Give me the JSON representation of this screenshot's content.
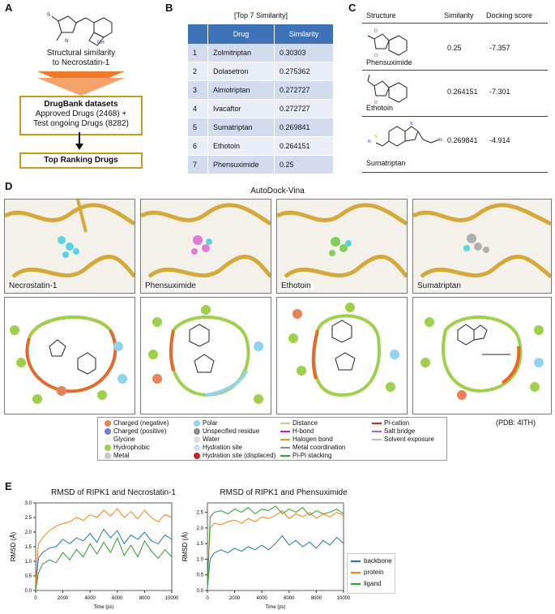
{
  "panels": {
    "a": "A",
    "b": "B",
    "c": "C",
    "d": "D",
    "e": "E"
  },
  "panel_a": {
    "similarity_label": "Structural similarity\nto Necrostatin-1",
    "datasets_title": "DrugBank datasets",
    "datasets_line1": "Approved Drugs  (2468) +",
    "datasets_line2": "Test ongoing Drugs (8282)",
    "result": "Top Ranking Drugs"
  },
  "panel_b": {
    "title": "[Top 7 Similarity]",
    "headers": [
      "",
      "Drug",
      "Similarity"
    ],
    "rows": [
      [
        "1",
        "Zolmitriptan",
        "0.30303"
      ],
      [
        "2",
        "Dolasetron",
        "0.275362"
      ],
      [
        "3",
        "Almotriptan",
        "0.272727"
      ],
      [
        "4",
        "Ivacaftor",
        "0.272727"
      ],
      [
        "5",
        "Sumatriptan",
        "0.269841"
      ],
      [
        "6",
        "Ethotoin",
        "0.264151"
      ],
      [
        "7",
        "Phensuximide",
        "0.25"
      ]
    ]
  },
  "panel_c": {
    "headers": [
      "Structure",
      "Similarity",
      "Docking score"
    ],
    "rows": [
      {
        "name": "Phensuximide",
        "similarity": "0.25",
        "score": "-7.357"
      },
      {
        "name": "Ethotoin",
        "similarity": "0.264151",
        "score": "-7.301"
      },
      {
        "name": "Sumatriptan",
        "similarity": "0.269841",
        "score": "-4.914"
      }
    ]
  },
  "panel_d": {
    "title": "AutoDock-Vina",
    "ligands": [
      "Necrostatin-1",
      "Phensuximide",
      "Ethotoin",
      "Sumatriptan"
    ],
    "pdb": "(PDB: 4ITH)",
    "legend": [
      {
        "label": "Charged (negative)",
        "color": "#e8825a"
      },
      {
        "label": "Charged (positive)",
        "color": "#6f7fd6"
      },
      {
        "label": "Glycine",
        "color": "#f2f2f2"
      },
      {
        "label": "Hydrophobic",
        "color": "#9fd04a"
      },
      {
        "label": "Metal",
        "color": "#c8c8c8"
      },
      {
        "label": "Polar",
        "color": "#8fd3ef"
      },
      {
        "label": "Unspecified residue",
        "color": "#8c8c8c"
      },
      {
        "label": "Water",
        "color": "#dddddd"
      },
      {
        "label": "Hydration site",
        "color": "#cfe0f5"
      },
      {
        "label": "Hydration site (displaced)",
        "color": "#cc2222"
      },
      {
        "label": "Distance",
        "color": "#d8c280"
      },
      {
        "label": "H-bond",
        "color": "#b12ad6"
      },
      {
        "label": "Halogen bond",
        "color": "#d8a020"
      },
      {
        "label": "Metal coordination",
        "color": "#888888"
      },
      {
        "label": "Pi-Pi stacking",
        "color": "#22aa33"
      },
      {
        "label": "Pi-cation",
        "color": "#dd2222"
      },
      {
        "label": "Salt bridge",
        "color": "#b060c0"
      },
      {
        "label": "Solvent exposure",
        "color": "#bbbbbb"
      }
    ]
  },
  "chart_data": [
    {
      "type": "line",
      "title": "RMSD of RIPK1 and Necrostatin-1",
      "xlabel": "Time (ps)",
      "ylabel": "RMSD (Å)",
      "xlim": [
        0,
        10000
      ],
      "ylim": [
        0,
        3.0
      ],
      "xticks": [
        0,
        2000,
        4000,
        6000,
        8000,
        10000
      ],
      "yticks": [
        0.0,
        0.5,
        1.0,
        1.5,
        2.0,
        2.5,
        3.0
      ],
      "x": [
        0,
        200,
        500,
        1000,
        1500,
        2000,
        2500,
        3000,
        3500,
        4000,
        4500,
        5000,
        5500,
        6000,
        6500,
        7000,
        7500,
        8000,
        8500,
        9000,
        9500,
        10000
      ],
      "series": [
        {
          "color": "#1f77b4",
          "values": [
            0.1,
            1.1,
            1.3,
            1.45,
            1.5,
            1.75,
            1.6,
            1.8,
            1.7,
            1.95,
            1.65,
            2.1,
            1.8,
            2.05,
            1.6,
            1.9,
            1.75,
            2.0,
            1.7,
            1.6,
            1.9,
            1.75
          ]
        },
        {
          "color": "#ff7f0e",
          "values": [
            0.2,
            1.6,
            1.8,
            2.05,
            2.2,
            2.3,
            2.35,
            2.5,
            2.4,
            2.6,
            2.5,
            2.75,
            2.55,
            2.8,
            2.5,
            2.7,
            2.45,
            2.75,
            2.5,
            2.35,
            2.6,
            2.5
          ]
        },
        {
          "color": "#2ca02c",
          "values": [
            0.0,
            0.6,
            0.9,
            1.05,
            0.95,
            1.3,
            1.05,
            1.4,
            1.15,
            1.6,
            1.25,
            1.65,
            1.3,
            1.8,
            1.2,
            1.55,
            1.15,
            1.7,
            1.35,
            1.1,
            1.4,
            1.15
          ]
        }
      ]
    },
    {
      "type": "line",
      "title": "RMSD of RIPK1 and Phensuximide",
      "xlabel": "Time (ps)",
      "ylabel": "RMSD (Å)",
      "xlim": [
        0,
        10000
      ],
      "ylim": [
        0,
        2.8
      ],
      "xticks": [
        0,
        2000,
        4000,
        6000,
        8000,
        10000
      ],
      "yticks": [
        0.0,
        0.5,
        1.0,
        1.5,
        2.0,
        2.5
      ],
      "x": [
        0,
        200,
        500,
        1000,
        1500,
        2000,
        2500,
        3000,
        3500,
        4000,
        4500,
        5000,
        5500,
        6000,
        6500,
        7000,
        7500,
        8000,
        8500,
        9000,
        9500,
        10000
      ],
      "series": [
        {
          "name": "backbone",
          "color": "#1f77b4",
          "values": [
            0.1,
            1.0,
            1.2,
            1.3,
            1.2,
            1.35,
            1.25,
            1.4,
            1.3,
            1.45,
            1.3,
            1.5,
            1.75,
            1.45,
            1.6,
            1.4,
            1.55,
            1.35,
            1.6,
            1.45,
            1.7,
            1.5
          ]
        },
        {
          "name": "protein",
          "color": "#ff7f0e",
          "values": [
            0.3,
            2.0,
            2.15,
            2.1,
            2.2,
            2.25,
            2.15,
            2.3,
            2.2,
            2.35,
            2.3,
            2.4,
            2.55,
            2.3,
            2.45,
            2.35,
            2.5,
            2.3,
            2.45,
            2.35,
            2.5,
            2.4
          ]
        },
        {
          "name": "ligand",
          "color": "#2ca02c",
          "values": [
            0.1,
            2.35,
            2.5,
            2.55,
            2.45,
            2.6,
            2.5,
            2.65,
            2.45,
            2.6,
            2.55,
            2.7,
            2.45,
            2.6,
            2.5,
            2.65,
            2.4,
            2.55,
            2.45,
            2.5,
            2.6,
            2.45
          ]
        }
      ]
    }
  ]
}
